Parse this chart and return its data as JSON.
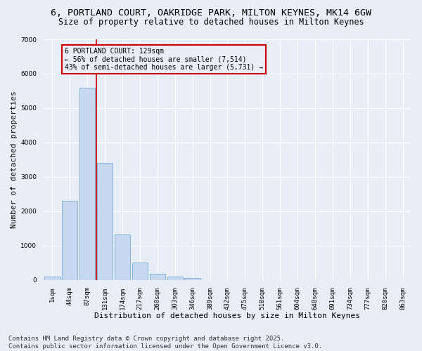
{
  "title_line1": "6, PORTLAND COURT, OAKRIDGE PARK, MILTON KEYNES, MK14 6GW",
  "title_line2": "Size of property relative to detached houses in Milton Keynes",
  "xlabel": "Distribution of detached houses by size in Milton Keynes",
  "ylabel": "Number of detached properties",
  "categories": [
    "1sqm",
    "44sqm",
    "87sqm",
    "131sqm",
    "174sqm",
    "217sqm",
    "260sqm",
    "303sqm",
    "346sqm",
    "389sqm",
    "432sqm",
    "475sqm",
    "518sqm",
    "561sqm",
    "604sqm",
    "648sqm",
    "691sqm",
    "734sqm",
    "777sqm",
    "820sqm",
    "863sqm"
  ],
  "values": [
    100,
    2300,
    5600,
    3400,
    1320,
    500,
    190,
    100,
    60,
    0,
    0,
    0,
    0,
    0,
    0,
    0,
    0,
    0,
    0,
    0,
    0
  ],
  "bar_color": "#c5d8f0",
  "bar_edge_color": "#7aabce",
  "vline_color": "#cc0000",
  "ylim": [
    0,
    7000
  ],
  "yticks": [
    0,
    1000,
    2000,
    3000,
    4000,
    5000,
    6000,
    7000
  ],
  "annotation_title": "6 PORTLAND COURT: 129sqm",
  "annotation_line2": "← 56% of detached houses are smaller (7,514)",
  "annotation_line3": "43% of semi-detached houses are larger (5,731) →",
  "annotation_box_color": "#cc0000",
  "footer_line1": "Contains HM Land Registry data © Crown copyright and database right 2025.",
  "footer_line2": "Contains public sector information licensed under the Open Government Licence v3.0.",
  "bg_color": "#e8eef8",
  "plot_bg_color": "#e8eef8",
  "grid_color": "#ffffff",
  "title_fontsize": 9.5,
  "subtitle_fontsize": 8.5,
  "tick_fontsize": 6.5,
  "label_fontsize": 8,
  "annotation_fontsize": 7,
  "footer_fontsize": 6.5
}
